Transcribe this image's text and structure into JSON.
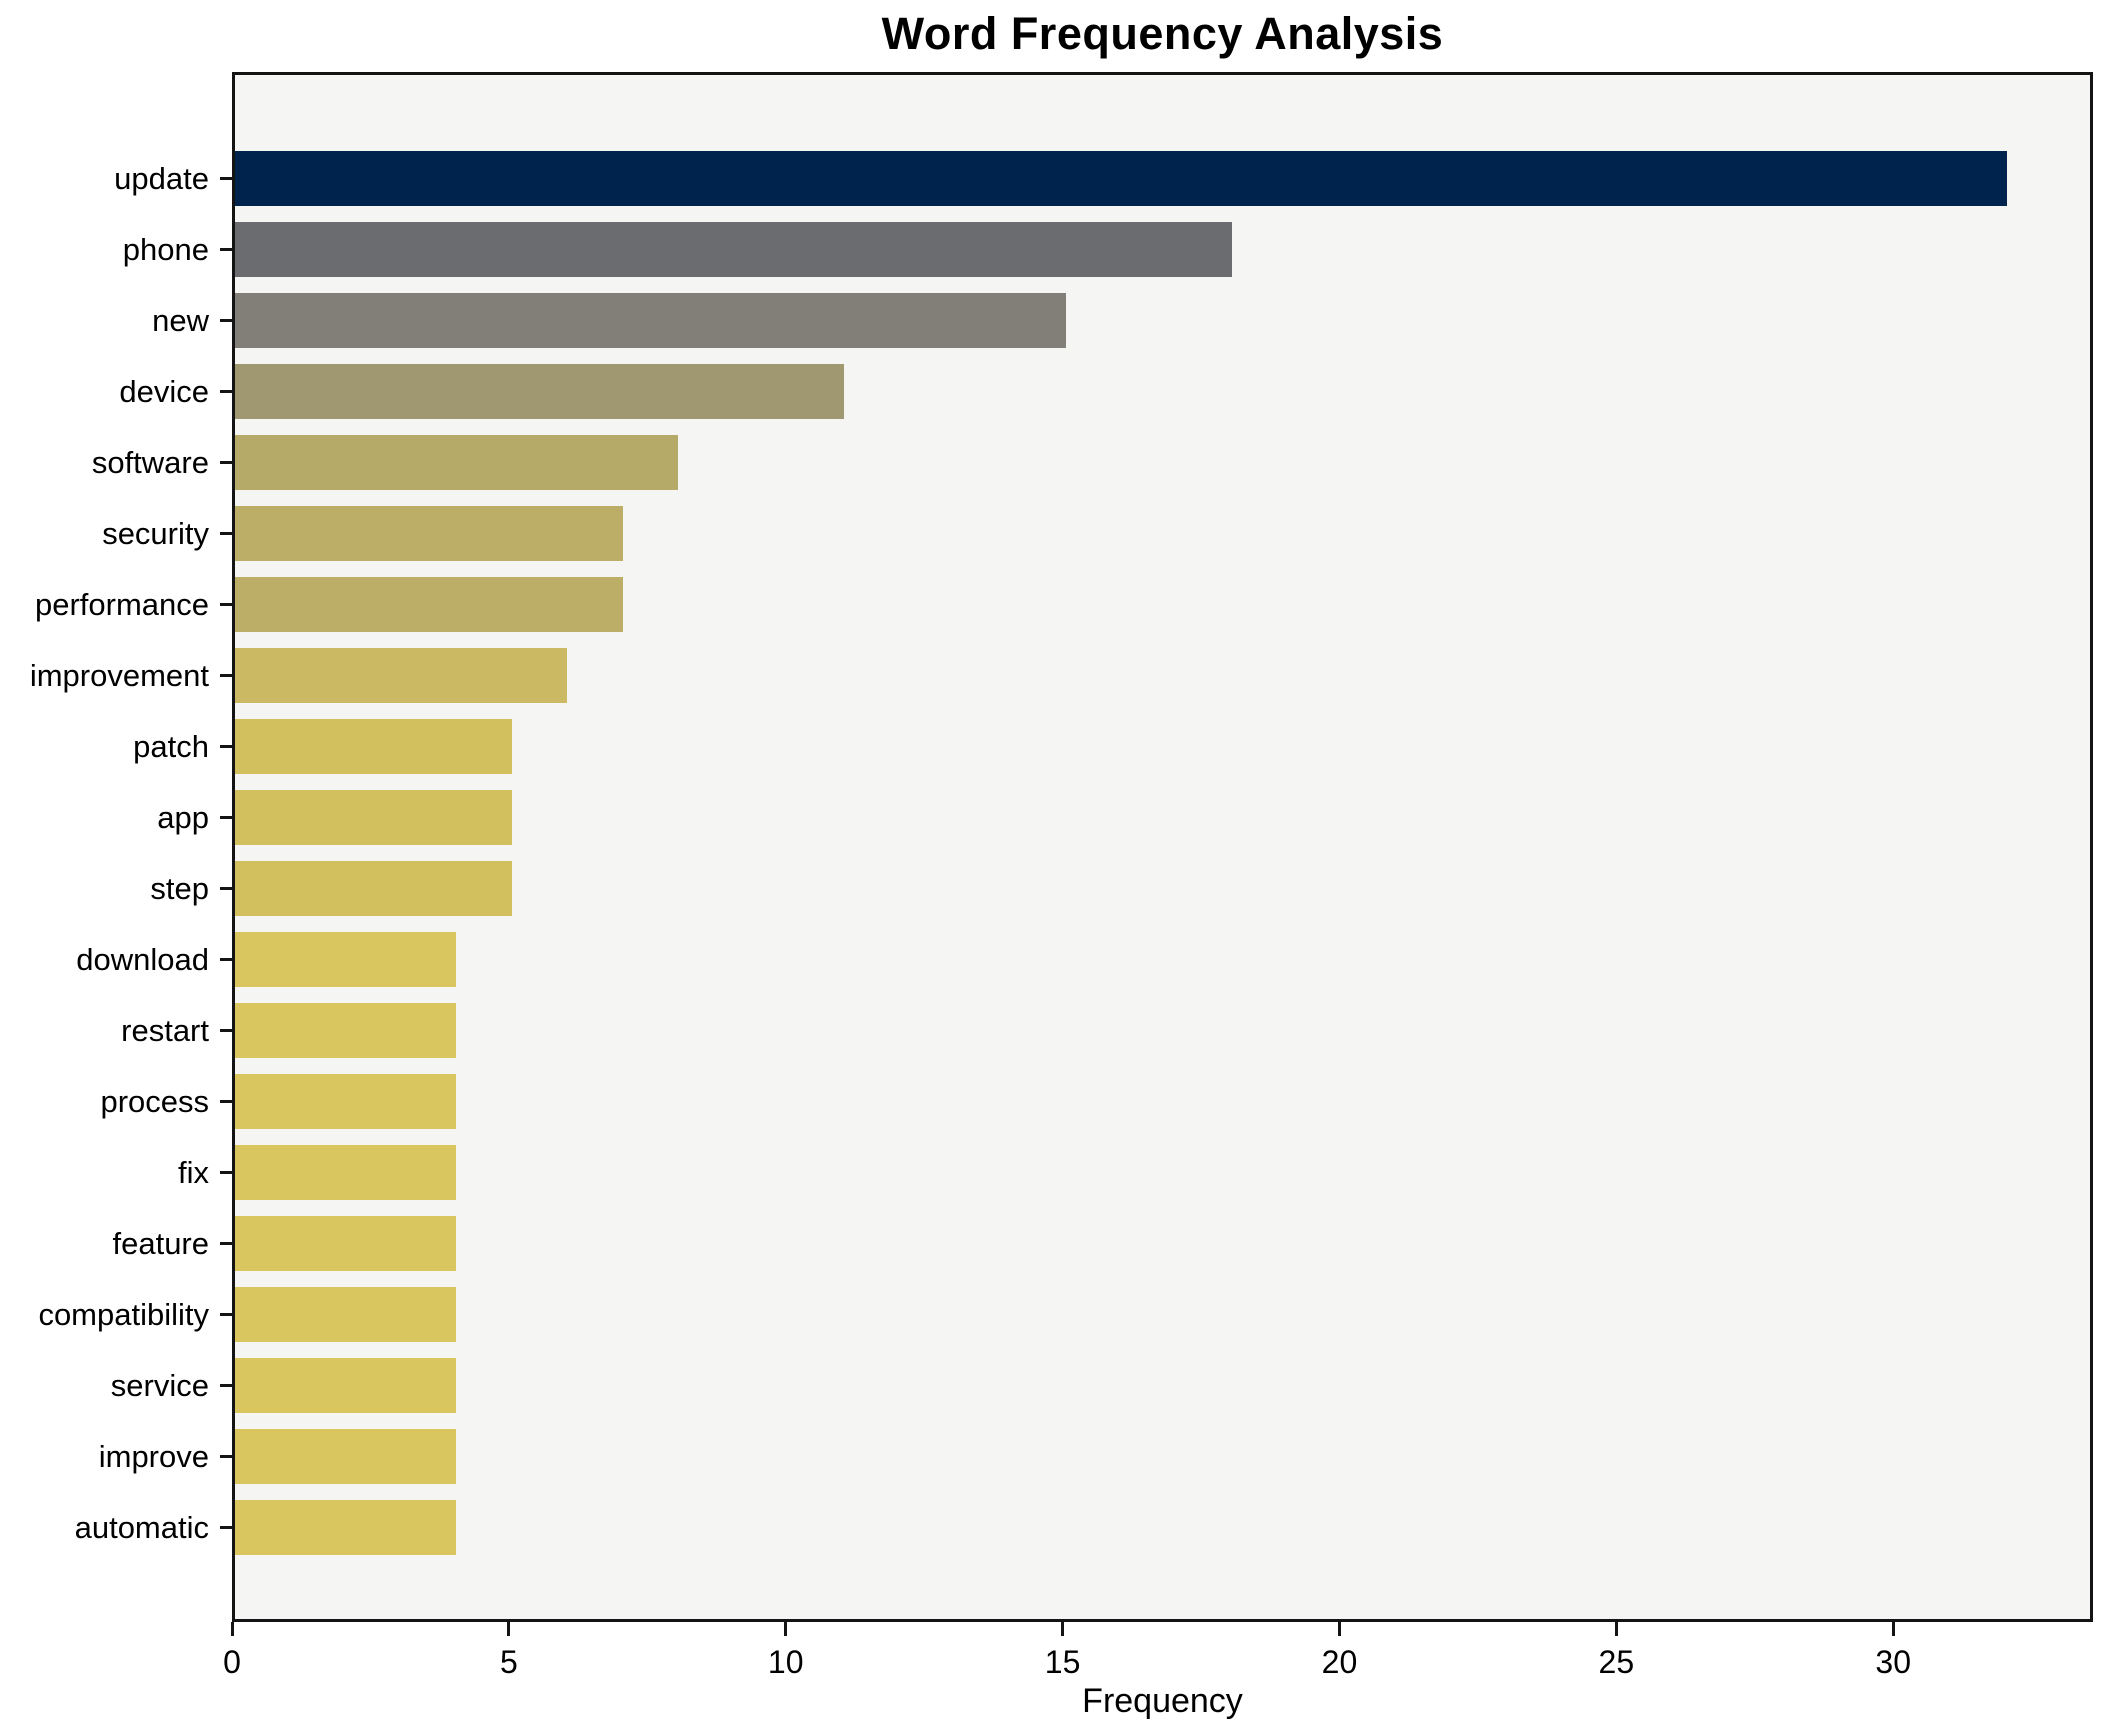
{
  "figure": {
    "title": "Word Frequency Analysis",
    "background_color": "#ffffff",
    "plot_background_color": "#f5f5f4",
    "spine_color": "#141414",
    "text_color": "#000000"
  },
  "chart_data": {
    "type": "bar",
    "orientation": "horizontal",
    "title": "Word Frequency Analysis",
    "xlabel": "Frequency",
    "ylabel": "",
    "xlim": [
      0,
      33.5
    ],
    "xticks": [
      0,
      5,
      10,
      15,
      20,
      25,
      30
    ],
    "grid": false,
    "legend": false,
    "categories": [
      "update",
      "phone",
      "new",
      "device",
      "software",
      "security",
      "performance",
      "improvement",
      "patch",
      "app",
      "step",
      "download",
      "restart",
      "process",
      "fix",
      "feature",
      "compatibility",
      "service",
      "improve",
      "automatic"
    ],
    "values": [
      32,
      18,
      15,
      11,
      8,
      7,
      7,
      6,
      5,
      5,
      5,
      4,
      4,
      4,
      4,
      4,
      4,
      4,
      4,
      4
    ],
    "bar_colors": [
      "#00234e",
      "#6b6c70",
      "#817f77",
      "#9f9871",
      "#b5aa68",
      "#bcae66",
      "#bcae66",
      "#cbb963",
      "#d2c05e",
      "#d2c05e",
      "#d2c05e",
      "#d9c65e",
      "#d9c65e",
      "#d9c65e",
      "#d9c65e",
      "#d9c65e",
      "#d9c65e",
      "#d9c65e",
      "#d9c65e",
      "#d9c65e"
    ]
  }
}
